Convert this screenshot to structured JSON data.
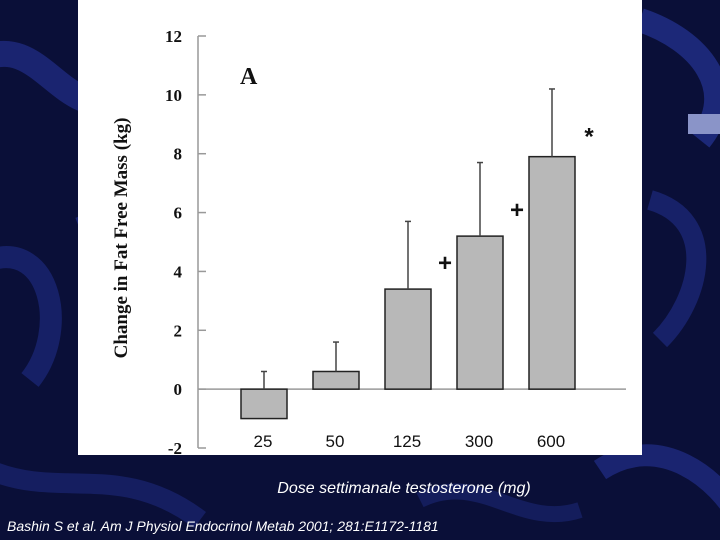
{
  "chart_data": {
    "type": "bar",
    "panel_label": "A",
    "ylabel": "Change in Fat Free Mass (kg)",
    "xlabel": "Dose settimanale testosterone (mg)",
    "categories": [
      "25",
      "50",
      "125",
      "300",
      "600"
    ],
    "values": [
      -1.0,
      0.6,
      3.4,
      5.2,
      7.9
    ],
    "error_upper": [
      0.6,
      1.6,
      5.7,
      7.7,
      10.2
    ],
    "annotations": [
      "",
      "",
      "+",
      "+",
      "*"
    ],
    "y_ticks": [
      "-2",
      "0",
      "2",
      "4",
      "6",
      "8",
      "10",
      "12"
    ],
    "ylim": [
      -2,
      12
    ],
    "bar_color": "#b8b8b8"
  },
  "citation": "Bashin S et al. Am J Physiol Endocrinol Metab 2001; 281:E1172-1181",
  "colors": {
    "background": "#0a0f38",
    "panel": "#ffffff"
  }
}
